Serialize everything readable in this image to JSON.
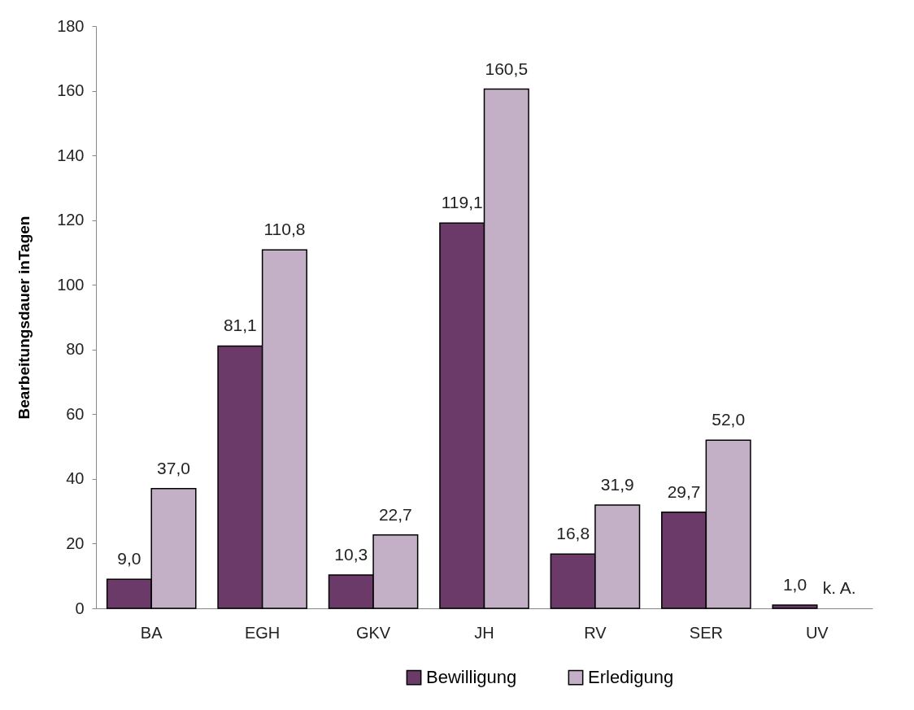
{
  "chart_data": {
    "type": "bar",
    "ylabel": "Bearbeitungsdauer inTagen",
    "categories": [
      "BA",
      "EGH",
      "GKV",
      "JH",
      "RV",
      "SER",
      "UV"
    ],
    "series": [
      {
        "name": "Bewilligung",
        "color": "#6b3a68",
        "values": [
          9.0,
          81.1,
          10.3,
          119.1,
          16.8,
          29.7,
          1.0
        ],
        "value_labels": [
          "9,0",
          "81,1",
          "10,3",
          "119,1",
          "16,8",
          "29,7",
          "1,0"
        ]
      },
      {
        "name": "Erledigung",
        "color": "#c4b0c6",
        "values": [
          37.0,
          110.8,
          22.7,
          160.5,
          31.9,
          52.0,
          null
        ],
        "value_labels": [
          "37,0",
          "110,8",
          "22,7",
          "160,5",
          "31,9",
          "52,0",
          "k. A."
        ]
      }
    ],
    "ylim": [
      0,
      180
    ],
    "yticks": [
      0,
      20,
      40,
      60,
      80,
      100,
      120,
      140,
      160,
      180
    ],
    "grid": false,
    "legend": "bottom"
  }
}
